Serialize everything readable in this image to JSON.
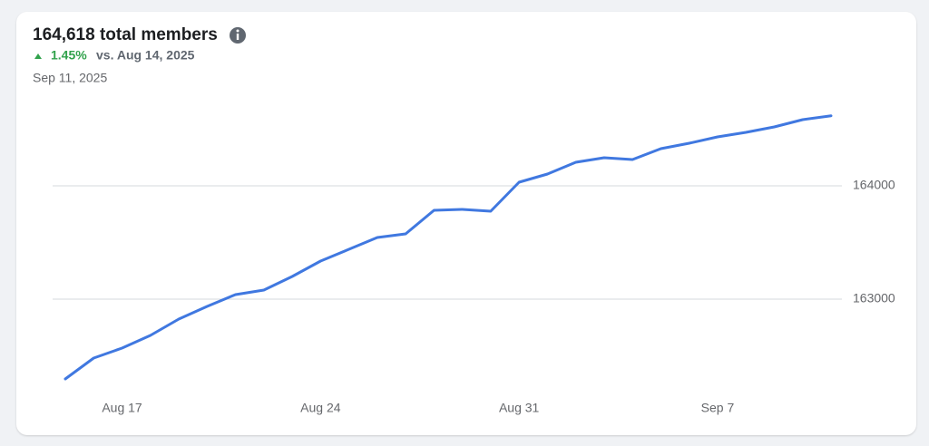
{
  "header": {
    "title": "164,618 total members",
    "change": "1.45%",
    "comparison": "vs. Aug 14, 2025",
    "date": "Sep 11, 2025"
  },
  "chart_data": {
    "type": "line",
    "categories": [
      null,
      null,
      "Aug 17",
      null,
      null,
      null,
      null,
      null,
      null,
      "Aug 24",
      null,
      null,
      null,
      null,
      null,
      null,
      "Aug 31",
      null,
      null,
      null,
      null,
      null,
      null,
      "Sep 7",
      null,
      null,
      null,
      null
    ],
    "series": [
      {
        "name": "Total members",
        "color": "#4078e0",
        "values": [
          162296,
          162480,
          162568,
          162680,
          162824,
          162936,
          163040,
          163080,
          163200,
          163336,
          163440,
          163544,
          163576,
          163784,
          163792,
          163776,
          164032,
          164104,
          164208,
          164248,
          164232,
          164328,
          164376,
          164432,
          164472,
          164520,
          164584,
          164618
        ]
      }
    ],
    "ylim": [
      162160,
      164840
    ],
    "yticks": [
      163000,
      164000
    ],
    "grid": true
  }
}
